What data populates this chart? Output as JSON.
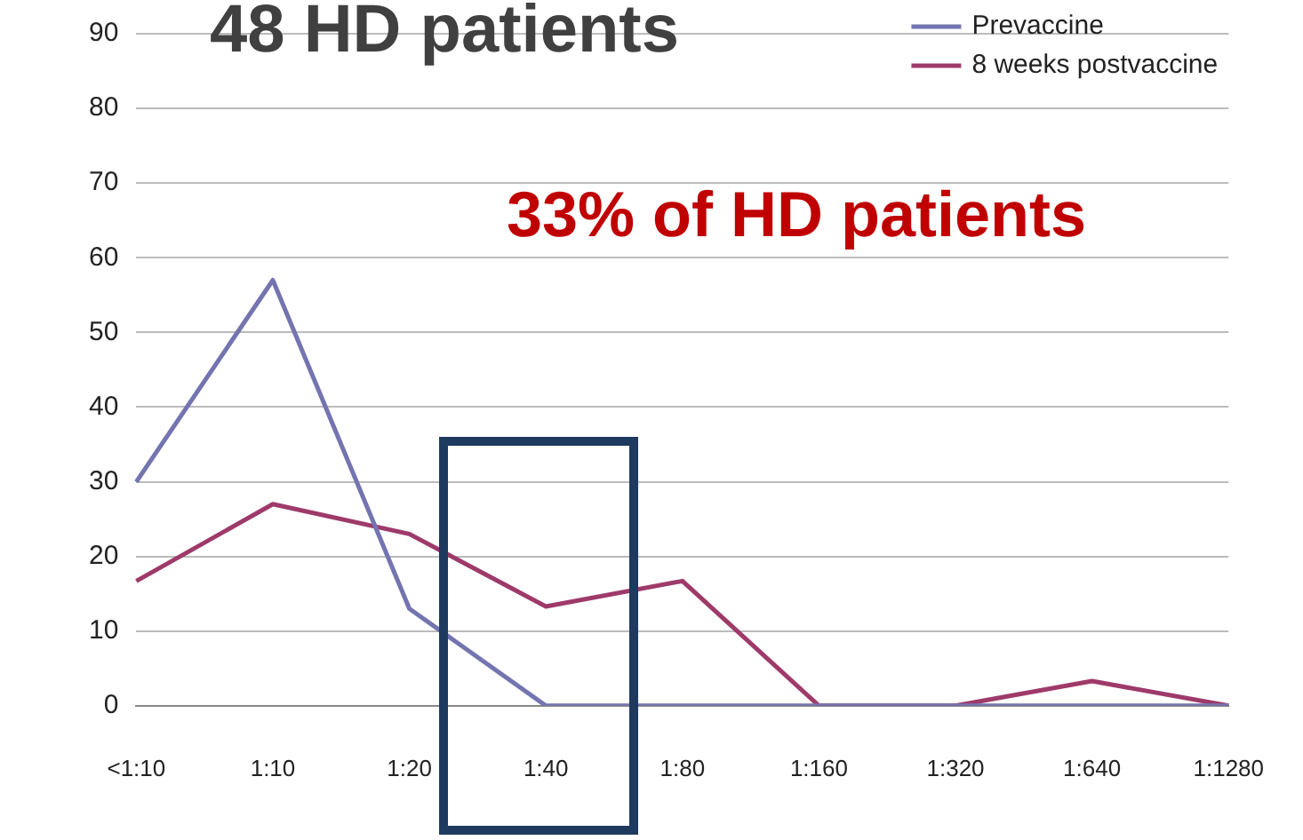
{
  "chart_data": {
    "type": "line",
    "title": "48 HD patients",
    "annotations": [
      "33% of HD patients"
    ],
    "categories": [
      "<1:10",
      "1:10",
      "1:20",
      "1:40",
      "1:80",
      "1:160",
      "1:320",
      "1:640",
      "1:1280"
    ],
    "series": [
      {
        "name": "Prevaccine",
        "color": "#7474b0",
        "values": [
          30,
          57,
          13,
          0,
          0,
          0,
          0,
          0,
          0
        ]
      },
      {
        "name": "8 weeks postvaccine",
        "color": "#9e3a6a",
        "values": [
          16.7,
          27,
          23,
          13.3,
          16.7,
          0,
          0,
          3.3,
          0
        ]
      }
    ],
    "ylim": [
      0,
      90
    ],
    "yticks": [
      0,
      10,
      20,
      30,
      40,
      50,
      60,
      70,
      80,
      90
    ],
    "grid": "y",
    "legend": "top right",
    "marker": "none",
    "line_style": "solid"
  }
}
